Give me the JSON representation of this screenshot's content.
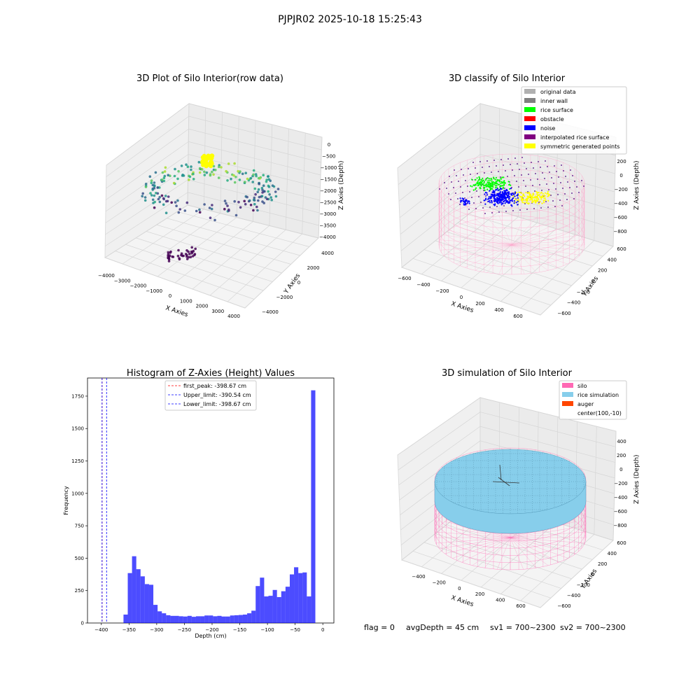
{
  "suptitle": "PJPJR02 2025-10-18 15:25:43",
  "panels": {
    "raw": {
      "title": "3D Plot of Silo Interior(row data)",
      "xlabel": "X Axies",
      "ylabel": "Y Axies",
      "zlabel": "Z Axies (Depth)",
      "xticks": [
        "−4000",
        "−3000",
        "−2000",
        "−1000",
        "0",
        "1000",
        "2000",
        "3000",
        "4000"
      ],
      "yticks": [
        "−4000",
        "−2000",
        "0",
        "2000",
        "4000"
      ],
      "zticks": [
        "0",
        "−500",
        "−1000",
        "−1500",
        "−2000",
        "−2500",
        "−3000",
        "−3500",
        "−4000"
      ]
    },
    "classify": {
      "title": "3D classify of Silo Interior",
      "xlabel": "X Axies",
      "ylabel": "Y Axies",
      "zlabel": "Z Axies (Depth)",
      "xticks": [
        "−600",
        "−400",
        "−200",
        "0",
        "200",
        "400",
        "600"
      ],
      "yticks": [
        "−600",
        "−400",
        "−200",
        "0",
        "200",
        "400",
        "600"
      ],
      "zticks": [
        "200",
        "0",
        "−200",
        "−400",
        "−600",
        "−800"
      ]
    },
    "simulation": {
      "title": "3D simulation of Silo Interior",
      "xlabel": "X Axies",
      "ylabel": "Y Axies",
      "zlabel": "Z Axies (Depth)",
      "xticks": [
        "−400",
        "−200",
        "0",
        "200",
        "400",
        "600"
      ],
      "yticks": [
        "−600",
        "−400",
        "−200",
        "0",
        "200",
        "400",
        "600"
      ],
      "zticks": [
        "400",
        "200",
        "0",
        "−200",
        "−400",
        "−600",
        "−800"
      ]
    }
  },
  "legend_classify": [
    {
      "label": "original data",
      "color": "#b0b0b0"
    },
    {
      "label": "inner wall",
      "color": "#808080"
    },
    {
      "label": "rice surface",
      "color": "#00ff00"
    },
    {
      "label": "obstacle",
      "color": "#ff0000"
    },
    {
      "label": "noise",
      "color": "#0000ff"
    },
    {
      "label": "interpolated rice surface",
      "color": "#800080"
    },
    {
      "label": "symmetric generated points",
      "color": "#ffff00"
    }
  ],
  "legend_simulation": [
    {
      "label": "silo",
      "color": "#ff69b4"
    },
    {
      "label": "rice simulation",
      "color": "#87ceeb"
    },
    {
      "label": "auger",
      "color": "#ff4500"
    },
    {
      "label": "center(100,-10)",
      "color": ""
    }
  ],
  "status": {
    "flag": "flag = 0",
    "avg": "avgDepth = 45 cm",
    "sv1": "sv1 = 700~2300",
    "sv2": "sv2 = 700~2300"
  },
  "chart_data": {
    "type": "bar",
    "title": "Histogram of Z-Axies (Height) Values",
    "xlabel": "Depth (cm)",
    "ylabel": "Frequency",
    "xlim": [
      -425,
      20
    ],
    "ylim": [
      0,
      1890
    ],
    "xticks": [
      -400,
      -350,
      -300,
      -250,
      -200,
      -150,
      -100,
      -50,
      0
    ],
    "yticks": [
      0,
      250,
      500,
      750,
      1000,
      1250,
      1500,
      1750
    ],
    "bar_color": "#0000ff",
    "bin_start": -360,
    "bin_width": 7.7,
    "values": [
      65,
      385,
      515,
      415,
      360,
      300,
      295,
      140,
      90,
      75,
      60,
      55,
      55,
      52,
      50,
      55,
      48,
      52,
      52,
      58,
      58,
      52,
      55,
      50,
      50,
      58,
      60,
      62,
      65,
      75,
      95,
      285,
      350,
      205,
      210,
      255,
      200,
      245,
      280,
      375,
      430,
      385,
      390,
      205,
      1795
    ],
    "vlines": [
      {
        "label": "first_peak: -398.67 cm",
        "x": -398.67,
        "color": "#ff0000"
      },
      {
        "label": "Upper_limit: -390.54 cm",
        "x": -390.54,
        "color": "#0000ff"
      },
      {
        "label": "Lower_limit: -398.67 cm",
        "x": -398.67,
        "color": "#0000ff"
      }
    ]
  }
}
